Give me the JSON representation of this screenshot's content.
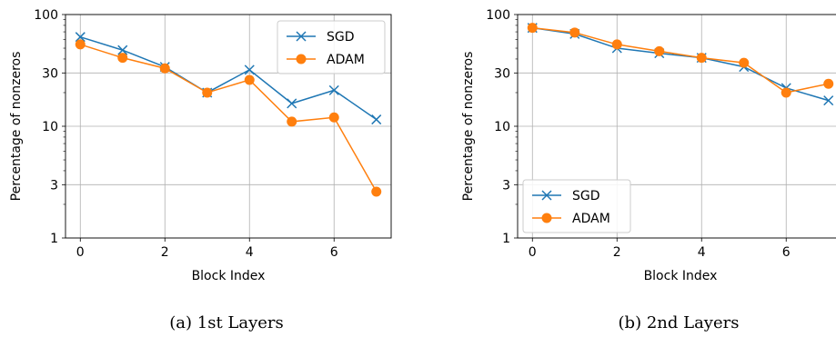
{
  "chart_data": [
    {
      "type": "line",
      "caption": "(a) 1st Layers",
      "xlabel": "Block Index",
      "ylabel": "Percentage of nonzeros",
      "yscale": "log",
      "ylim": [
        1,
        100
      ],
      "xlim": [
        -0.35,
        7.35
      ],
      "xticks": [
        0,
        2,
        4,
        6
      ],
      "yticks": [
        1,
        3,
        10,
        30,
        100
      ],
      "grid": true,
      "legend": "top-right",
      "x": [
        0,
        1,
        2,
        3,
        4,
        5,
        6,
        7
      ],
      "series": [
        {
          "name": "SGD",
          "color": "#1f77b4",
          "marker": "x",
          "values": [
            63,
            48,
            34,
            20,
            32,
            16,
            21,
            11.5
          ]
        },
        {
          "name": "ADAM",
          "color": "#ff7f0e",
          "marker": "o",
          "values": [
            54,
            41,
            33,
            20,
            26,
            11,
            12,
            2.6
          ]
        }
      ]
    },
    {
      "type": "line",
      "caption": "(b) 2nd Layers",
      "xlabel": "Block Index",
      "ylabel": "Percentage of nonzeros",
      "yscale": "log",
      "ylim": [
        1,
        100
      ],
      "xlim": [
        -0.35,
        7.35
      ],
      "xticks": [
        0,
        2,
        4,
        6
      ],
      "yticks": [
        1,
        3,
        10,
        30,
        100
      ],
      "grid": true,
      "legend": "bottom-left",
      "x": [
        0,
        1,
        2,
        3,
        4,
        5,
        6,
        7
      ],
      "series": [
        {
          "name": "SGD",
          "color": "#1f77b4",
          "marker": "x",
          "values": [
            76,
            67,
            50,
            45,
            41,
            34,
            22,
            17
          ]
        },
        {
          "name": "ADAM",
          "color": "#ff7f0e",
          "marker": "o",
          "values": [
            76,
            69,
            54,
            47,
            41,
            37,
            20,
            24
          ]
        }
      ]
    }
  ]
}
